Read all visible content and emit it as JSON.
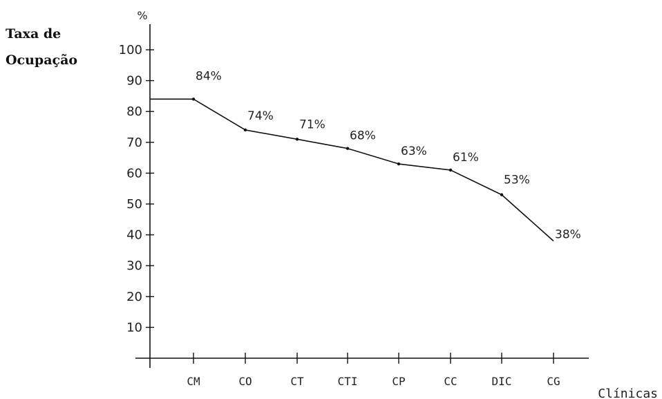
{
  "chart_data": {
    "type": "line",
    "ylabel": [
      "Taxa de",
      "Ocupação"
    ],
    "y_unit": "%",
    "xlabel": "Clínicas",
    "categories": [
      "CM",
      "CO",
      "CT",
      "CTI",
      "CP",
      "CC",
      "DIC",
      "CG"
    ],
    "series": [
      {
        "values": [
          84,
          74,
          71,
          68,
          63,
          61,
          53,
          38
        ],
        "labels": [
          "84%",
          "74%",
          "71%",
          "68%",
          "63%",
          "61%",
          "53%",
          "38%"
        ]
      }
    ],
    "line_start_value": 84,
    "yticks": [
      10,
      20,
      30,
      40,
      50,
      60,
      70,
      80,
      90,
      100
    ],
    "ylim": [
      0,
      110
    ],
    "grid": false,
    "line_color": "#111111"
  }
}
